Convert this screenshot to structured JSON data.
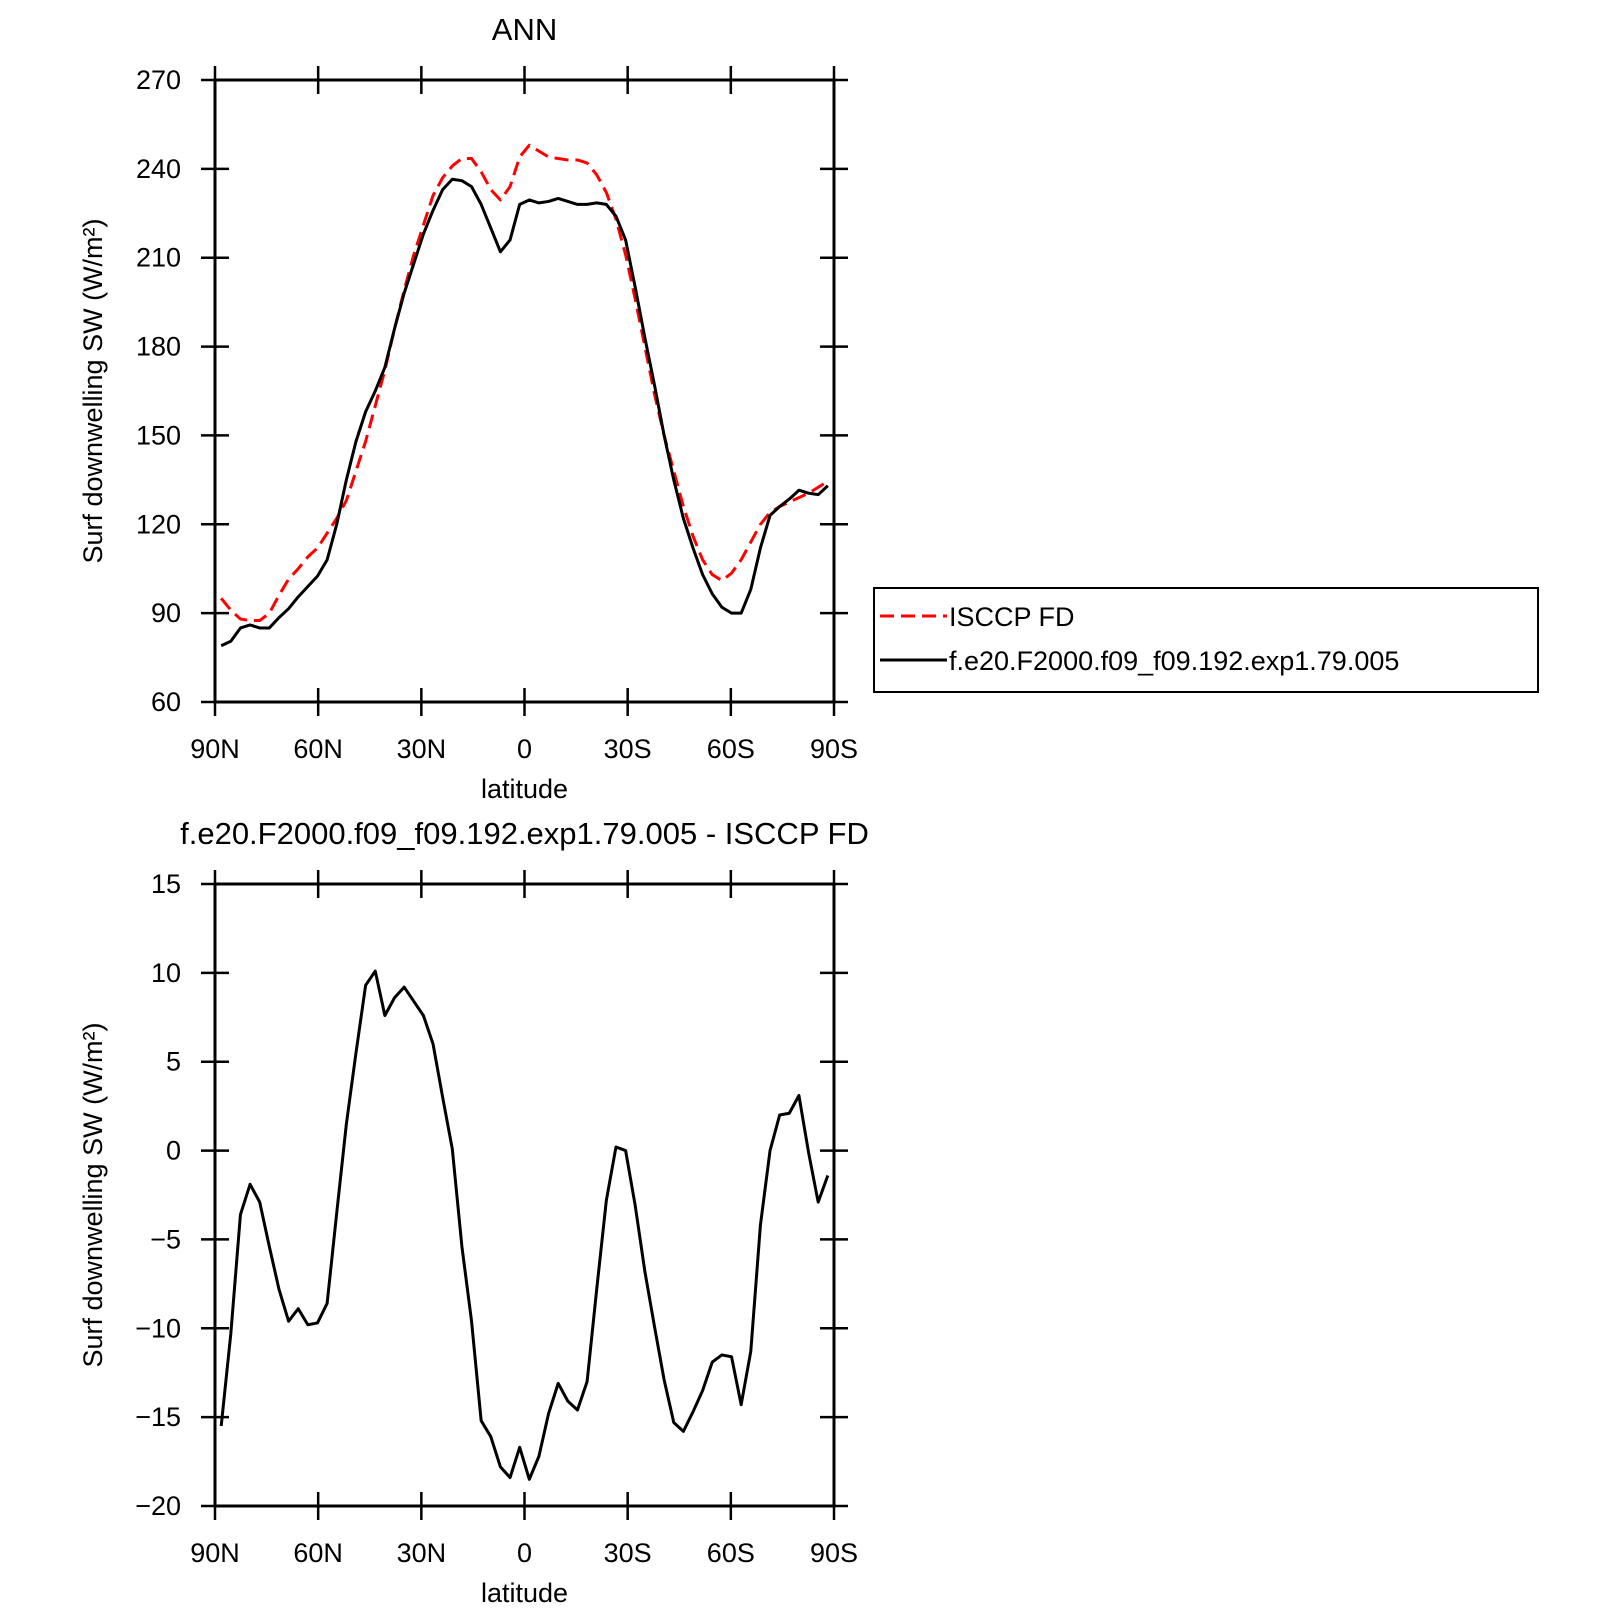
{
  "chart_data": [
    {
      "type": "line",
      "title": "ANN",
      "xlabel": "latitude",
      "ylabel": "Surf downwelling SW (W/m²)",
      "x": [
        88.2,
        85.4,
        82.6,
        79.8,
        77.0,
        74.2,
        71.4,
        68.6,
        65.8,
        63.0,
        60.2,
        57.4,
        54.6,
        51.8,
        49.0,
        46.2,
        43.4,
        40.6,
        37.8,
        35.0,
        32.2,
        29.4,
        26.6,
        23.8,
        21.0,
        18.2,
        15.4,
        12.6,
        9.8,
        7.0,
        4.2,
        1.4,
        -1.4,
        -4.2,
        -7.0,
        -9.8,
        -12.6,
        -15.4,
        -18.2,
        -21.0,
        -23.8,
        -26.6,
        -29.4,
        -32.2,
        -35.0,
        -37.8,
        -40.6,
        -43.4,
        -46.2,
        -49.0,
        -51.8,
        -54.6,
        -57.4,
        -60.2,
        -63.0,
        -65.8,
        -68.6,
        -71.4,
        -74.2,
        -77.0,
        -79.8,
        -82.6,
        -85.4,
        -88.2
      ],
      "xlim": [
        90,
        -90
      ],
      "xticks": [
        {
          "value": 90,
          "label": "90N"
        },
        {
          "value": 60,
          "label": "60N"
        },
        {
          "value": 30,
          "label": "30N"
        },
        0,
        {
          "value": -30,
          "label": "30S"
        },
        {
          "value": -60,
          "label": "60S"
        },
        {
          "value": -90,
          "label": "90S"
        }
      ],
      "ylim": [
        60,
        270
      ],
      "yticks": [
        60,
        90,
        120,
        150,
        180,
        210,
        240,
        270
      ],
      "legend": "outside-right",
      "series": [
        {
          "name": "ISCCP FD",
          "color": "#ff0000",
          "style": "dashed",
          "values": [
            95,
            91,
            88,
            87.5,
            87.5,
            90,
            96,
            101.5,
            105,
            109,
            112,
            117,
            122,
            128,
            138,
            148,
            160,
            172,
            186,
            199,
            211,
            221,
            231,
            237,
            241,
            243.5,
            243.5,
            239,
            233,
            229.5,
            234,
            244,
            248,
            246,
            244,
            243.5,
            243,
            243,
            242,
            238,
            232,
            223,
            211,
            196,
            180,
            164,
            150,
            138,
            126,
            116,
            108,
            103,
            101,
            103.5,
            108,
            114,
            120,
            124,
            126,
            127.5,
            129,
            130.5,
            132.5,
            134.5
          ]
        },
        {
          "name": "f.e20.F2000.f09_f09.192.exp1.79.005",
          "color": "#000000",
          "style": "solid",
          "values": [
            79,
            80.5,
            85,
            86,
            85,
            85,
            88.5,
            91.5,
            95.5,
            99,
            102.5,
            108,
            120,
            135,
            148,
            158,
            165,
            173,
            186,
            198,
            208,
            218,
            226,
            233,
            236.5,
            236,
            234,
            228,
            220,
            212,
            216,
            228,
            229.5,
            228.5,
            229,
            230,
            229,
            228,
            228,
            228.5,
            228,
            224,
            216,
            200,
            183,
            167,
            150,
            135,
            122,
            112,
            103,
            96.5,
            92,
            90,
            90,
            98,
            112,
            123,
            126,
            128.5,
            131.5,
            130.5,
            130,
            133
          ]
        }
      ]
    },
    {
      "type": "line",
      "title": "f.e20.F2000.f09_f09.192.exp1.79.005 - ISCCP FD",
      "xlabel": "latitude",
      "ylabel": "Surf downwelling SW (W/m²)",
      "x": [
        88.2,
        85.4,
        82.6,
        79.8,
        77.0,
        74.2,
        71.4,
        68.6,
        65.8,
        63.0,
        60.2,
        57.4,
        54.6,
        51.8,
        49.0,
        46.2,
        43.4,
        40.6,
        37.8,
        35.0,
        32.2,
        29.4,
        26.6,
        23.8,
        21.0,
        18.2,
        15.4,
        12.6,
        9.8,
        7.0,
        4.2,
        1.4,
        -1.4,
        -4.2,
        -7.0,
        -9.8,
        -12.6,
        -15.4,
        -18.2,
        -21.0,
        -23.8,
        -26.6,
        -29.4,
        -32.2,
        -35.0,
        -37.8,
        -40.6,
        -43.4,
        -46.2,
        -49.0,
        -51.8,
        -54.6,
        -57.4,
        -60.2,
        -63.0,
        -65.8,
        -68.6,
        -71.4,
        -74.2,
        -77.0,
        -79.8,
        -82.6,
        -85.4,
        -88.2
      ],
      "xlim": [
        90,
        -90
      ],
      "xticks": [
        {
          "value": 90,
          "label": "90N"
        },
        {
          "value": 60,
          "label": "60N"
        },
        {
          "value": 30,
          "label": "30N"
        },
        0,
        {
          "value": -30,
          "label": "30S"
        },
        {
          "value": -60,
          "label": "60S"
        },
        {
          "value": -90,
          "label": "90S"
        }
      ],
      "ylim": [
        -20,
        15
      ],
      "yticks": [
        {
          "value": -20,
          "label": "−20"
        },
        {
          "value": -15,
          "label": "−15"
        },
        {
          "value": -10,
          "label": "−10"
        },
        {
          "value": -5,
          "label": "−5"
        },
        0,
        5,
        10,
        15
      ],
      "series": [
        {
          "color": "#000000",
          "style": "solid",
          "values": [
            -15.5,
            -10.3,
            -3.6,
            -1.9,
            -2.9,
            -5.4,
            -7.8,
            -9.6,
            -8.9,
            -9.8,
            -9.7,
            -8.6,
            -3.5,
            1.5,
            5.5,
            9.3,
            10.1,
            7.6,
            8.6,
            9.2,
            8.4,
            7.6,
            6.0,
            3.0,
            0.1,
            -5.4,
            -9.6,
            -15.2,
            -16.1,
            -17.8,
            -18.4,
            -16.7,
            -18.5,
            -17.2,
            -14.8,
            -13.1,
            -14.1,
            -14.6,
            -13.0,
            -7.8,
            -2.8,
            0.2,
            0.0,
            -3.1,
            -6.8,
            -9.9,
            -12.9,
            -15.3,
            -15.8,
            -14.7,
            -13.5,
            -11.9,
            -11.5,
            -11.6,
            -14.3,
            -11.3,
            -4.2,
            0.0,
            2.0,
            2.1,
            3.1,
            -0.1,
            -2.9,
            -1.4
          ]
        }
      ]
    }
  ]
}
